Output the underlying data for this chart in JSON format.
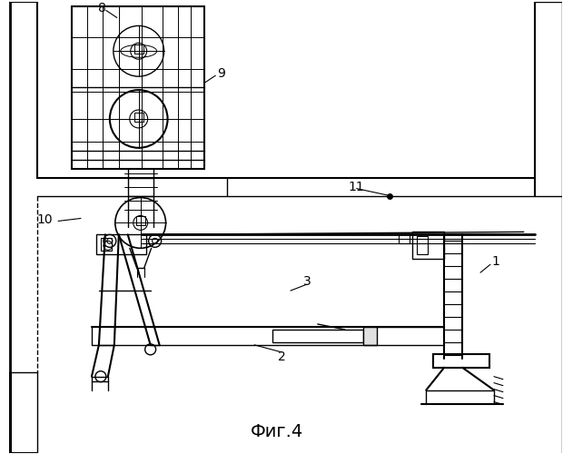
{
  "bg": "#ffffff",
  "lc": "#000000",
  "title": "Фиг.4",
  "title_fontsize": 14
}
